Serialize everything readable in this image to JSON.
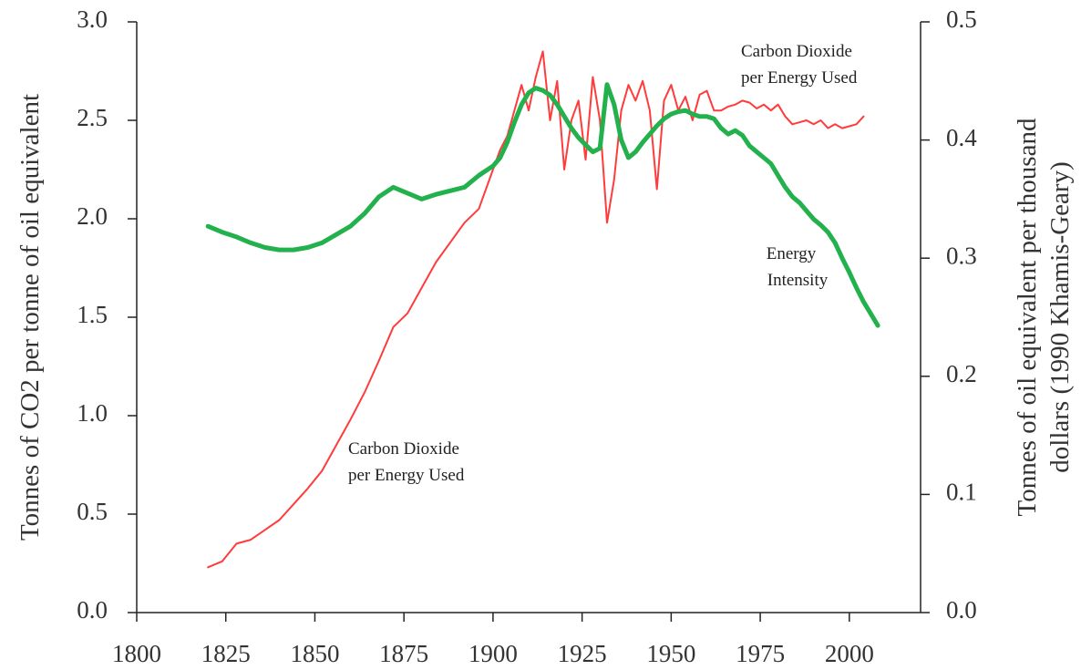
{
  "chart_data": {
    "type": "line",
    "ylabel": "Tonnes of CO2 per tonne of oil equivalent",
    "y2label": [
      "Tonnes of oil equivalent per thousand",
      "dollars (1990 Khamis-Geary)"
    ],
    "annotations": [
      [
        "Carbon Dioxide",
        "per Energy Used"
      ],
      [
        "Carbon Dioxide",
        "per Energy Used"
      ],
      [
        "Energy",
        "Intensity"
      ]
    ],
    "x": [
      1820,
      1824,
      1828,
      1832,
      1836,
      1840,
      1844,
      1848,
      1852,
      1856,
      1860,
      1864,
      1868,
      1872,
      1876,
      1880,
      1884,
      1888,
      1892,
      1896,
      1900,
      1902,
      1904,
      1906,
      1908,
      1910,
      1912,
      1914,
      1916,
      1918,
      1920,
      1922,
      1924,
      1926,
      1928,
      1930,
      1932,
      1934,
      1936,
      1938,
      1940,
      1942,
      1944,
      1946,
      1948,
      1950,
      1952,
      1954,
      1956,
      1958,
      1960,
      1962,
      1964,
      1966,
      1968,
      1970,
      1972,
      1974,
      1976,
      1978,
      1980,
      1982,
      1984,
      1986,
      1988,
      1990,
      1992,
      1994,
      1996,
      1998,
      2000,
      2002,
      2004,
      2006,
      2008
    ],
    "series": [
      {
        "name": "Carbon Dioxide per Energy Used",
        "color": "#ff3b3b",
        "width": 2,
        "values": [
          0.23,
          0.26,
          0.35,
          0.37,
          0.42,
          0.47,
          0.55,
          0.63,
          0.72,
          0.85,
          0.98,
          1.12,
          1.28,
          1.45,
          1.52,
          1.65,
          1.78,
          1.88,
          1.98,
          2.05,
          2.25,
          2.35,
          2.42,
          2.55,
          2.68,
          2.55,
          2.72,
          2.85,
          2.5,
          2.7,
          2.25,
          2.5,
          2.6,
          2.3,
          2.72,
          2.5,
          1.98,
          2.2,
          2.55,
          2.68,
          2.6,
          2.7,
          2.55,
          2.15,
          2.6,
          2.68,
          2.55,
          2.62,
          2.5,
          2.63,
          2.65,
          2.55,
          2.55,
          2.57,
          2.58,
          2.6,
          2.59,
          2.56,
          2.58,
          2.55,
          2.58,
          2.52,
          2.48,
          2.49,
          2.5,
          2.48,
          2.5,
          2.46,
          2.48,
          2.46,
          2.47,
          2.48,
          2.52,
          null,
          null
        ]
      },
      {
        "name": "Energy Intensity",
        "color": "#22b14c",
        "width": 5,
        "axis": "y2",
        "values": [
          0.327,
          0.322,
          0.318,
          0.313,
          0.309,
          0.307,
          0.307,
          0.309,
          0.313,
          0.32,
          0.327,
          0.338,
          0.352,
          0.36,
          0.355,
          0.35,
          0.354,
          0.357,
          0.36,
          0.37,
          0.378,
          0.385,
          0.398,
          0.415,
          0.43,
          0.44,
          0.444,
          0.442,
          0.438,
          0.43,
          0.42,
          0.41,
          0.402,
          0.396,
          0.39,
          0.393,
          0.447,
          0.43,
          0.4,
          0.385,
          0.39,
          0.398,
          0.405,
          0.412,
          0.418,
          0.422,
          0.424,
          0.425,
          0.422,
          0.42,
          0.42,
          0.418,
          0.41,
          0.405,
          0.408,
          0.404,
          0.395,
          0.39,
          0.385,
          0.38,
          0.37,
          0.36,
          0.352,
          0.347,
          0.34,
          0.333,
          0.328,
          0.322,
          0.313,
          0.3,
          0.288,
          0.275,
          0.263,
          0.253,
          0.243
        ]
      }
    ],
    "xlim": [
      1800,
      2020
    ],
    "xticks": [
      1800,
      1825,
      1850,
      1875,
      1900,
      1925,
      1950,
      1975,
      2000
    ],
    "ylim": [
      0,
      3
    ],
    "yticks": [
      {
        "value": 0,
        "label": "0.0"
      },
      0.5,
      {
        "value": 1,
        "label": "1.0"
      },
      1.5,
      {
        "value": 2,
        "label": "2.0"
      },
      2.5,
      {
        "value": 3,
        "label": "3.0"
      }
    ],
    "y2lim": [
      0,
      0.5
    ],
    "y2ticks": [
      {
        "value": 0,
        "label": "0.0"
      },
      0.1,
      0.2,
      0.3,
      0.4,
      0.5
    ],
    "grid": false
  }
}
